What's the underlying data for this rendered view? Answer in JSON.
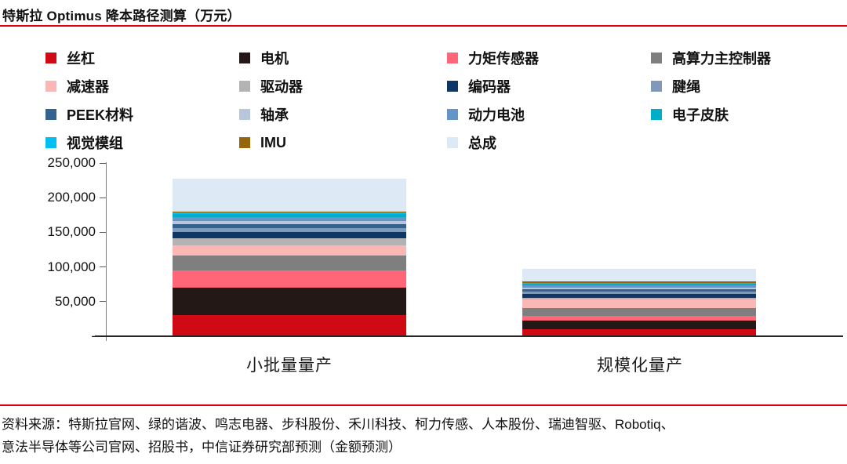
{
  "title": "特斯拉 Optimus 降本路径测算（万元）",
  "accent_color": "#E00012",
  "chart_data": {
    "type": "bar",
    "stacked": true,
    "title": "特斯拉 Optimus 降本路径测算（万元）",
    "unit": "万元",
    "legend_position": "top",
    "grid": false,
    "categories": [
      "小批量量产",
      "规模化量产"
    ],
    "series": [
      {
        "name": "丝杠",
        "color": "#CF0A14",
        "values": [
          30000,
          10000
        ]
      },
      {
        "name": "电机",
        "color": "#231815",
        "values": [
          40000,
          13000
        ]
      },
      {
        "name": "力矩传感器",
        "color": "#FF6678",
        "values": [
          25000,
          6500
        ]
      },
      {
        "name": "高算力主控制器",
        "color": "#7F7F7F",
        "values": [
          21000,
          11000
        ]
      },
      {
        "name": "减速器",
        "color": "#FBB6B6",
        "values": [
          15000,
          13000
        ]
      },
      {
        "name": "驱动器",
        "color": "#B3B3B3",
        "values": [
          10000,
          2500
        ]
      },
      {
        "name": "编码器",
        "color": "#0E3766",
        "values": [
          9000,
          5000
        ]
      },
      {
        "name": "腱绳",
        "color": "#8099B8",
        "values": [
          6000,
          4000
        ]
      },
      {
        "name": "PEEK材料",
        "color": "#35638F",
        "values": [
          5500,
          3000
        ]
      },
      {
        "name": "轴承",
        "color": "#B7C6DA",
        "values": [
          4500,
          2500
        ]
      },
      {
        "name": "动力电池",
        "color": "#6395C8",
        "values": [
          6000,
          3000
        ]
      },
      {
        "name": "电子皮肤",
        "color": "#00AEC7",
        "values": [
          4000,
          2000
        ]
      },
      {
        "name": "视觉模组",
        "color": "#00BFF3",
        "values": [
          3000,
          2000
        ]
      },
      {
        "name": "IMU",
        "color": "#96660A",
        "values": [
          1500,
          1500
        ]
      },
      {
        "name": "总成",
        "color": "#DEE9F6",
        "values": [
          47000,
          18000
        ]
      }
    ],
    "ylim": [
      0,
      250000
    ],
    "yticks": [
      {
        "value": 250000,
        "label": "250,000"
      },
      {
        "value": 200000,
        "label": "200,000"
      },
      {
        "value": 150000,
        "label": "150,000"
      },
      {
        "value": 100000,
        "label": "100,000"
      },
      {
        "value": 50000,
        "label": "50,000"
      },
      {
        "value": 0,
        "label": "-"
      }
    ]
  },
  "footer": {
    "line1": "资料来源：特斯拉官网、绿的谐波、鸣志电器、步科股份、禾川科技、柯力传感、人本股份、瑞迪智驱、Robotiq、",
    "line2": "意法半导体等公司官网、招股书，中信证券研究部预测（金额预测）"
  }
}
